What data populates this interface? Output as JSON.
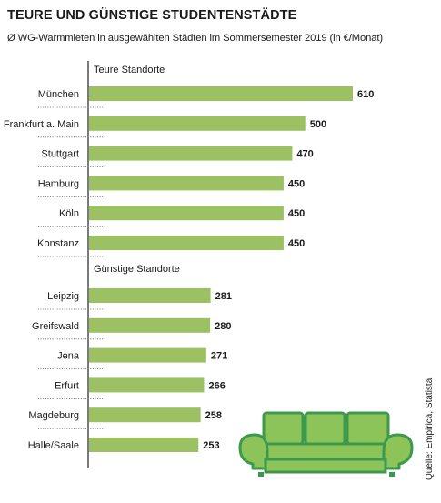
{
  "title": "TEURE UND GÜNSTIGE STUDENTENSTÄDTE",
  "subtitle": "Ø WG-Warmmieten in ausgewählten Städten im Sommersemester 2019 (in €/Monat)",
  "source": "Quelle: Empirica, Statista",
  "colors": {
    "bar": "#9bc163",
    "sofa_fill": "#8cc45a",
    "sofa_stroke": "#3d9a4c",
    "axis": "#222222",
    "dots": "#555555"
  },
  "chart_data": {
    "type": "bar",
    "orientation": "horizontal",
    "title": "TEURE UND GÜNSTIGE STUDENTENSTÄDTE",
    "subtitle": "Ø WG-Warmmieten in ausgewählten Städten im Sommersemester 2019 (in €/Monat)",
    "groups": [
      {
        "label": "Teure Standorte",
        "categories": [
          "München",
          "Frankfurt a. Main",
          "Stuttgart",
          "Hamburg",
          "Köln",
          "Konstanz"
        ],
        "values": [
          610,
          500,
          470,
          450,
          450,
          450
        ]
      },
      {
        "label": "Günstige Standorte",
        "categories": [
          "Leipzig",
          "Greifswald",
          "Jena",
          "Erfurt",
          "Magdeburg",
          "Halle/Saale"
        ],
        "values": [
          281,
          280,
          271,
          266,
          258,
          253
        ]
      }
    ],
    "xlim": [
      0,
      610
    ],
    "data_labels": true,
    "grid": false
  }
}
